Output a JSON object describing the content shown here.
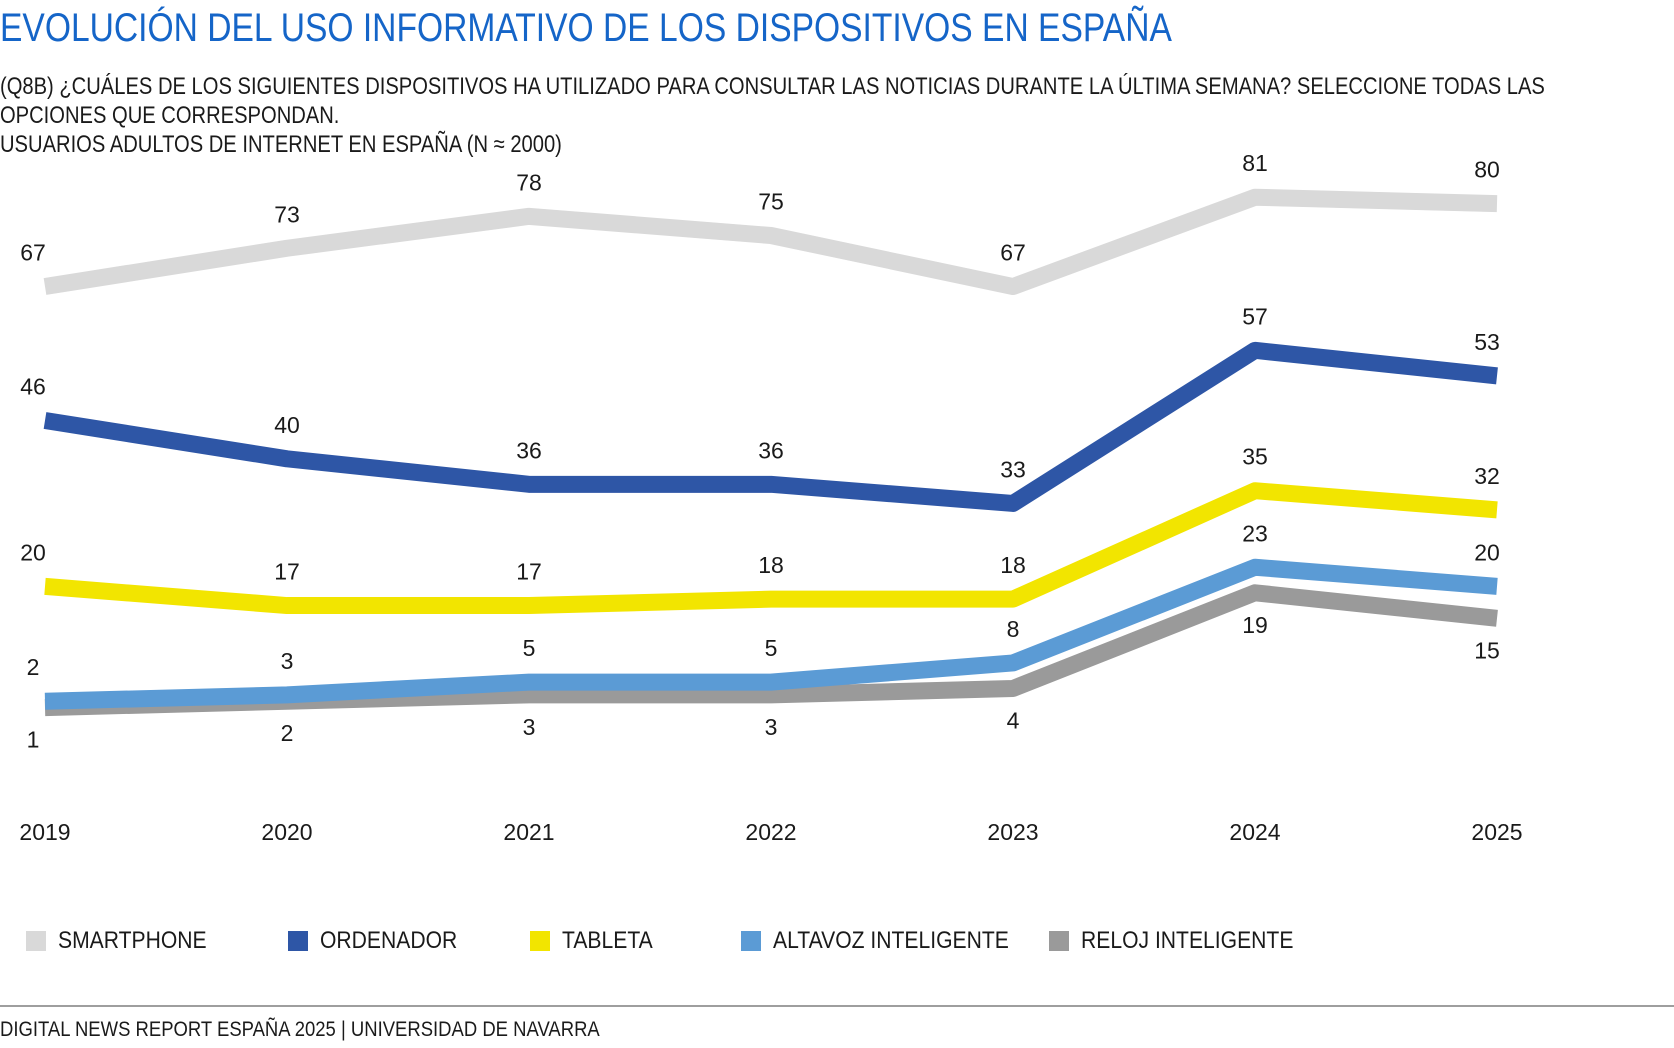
{
  "title": "EVOLUCIÓN DEL USO INFORMATIVO DE LOS DISPOSITIVOS EN ESPAÑA",
  "subtitle": {
    "question": "(Q8B) ¿CUÁLES DE LOS SIGUIENTES DISPOSITIVOS HA UTILIZADO PARA CONSULTAR LAS NOTICIAS  DURANTE LA ÚLTIMA SEMANA? SELECCIONE TODAS LAS OPCIONES QUE CORRESPONDAN.",
    "sample": "USUARIOS ADULTOS DE INTERNET EN ESPAÑA (N ≈ 2000)"
  },
  "legend": [
    {
      "label": "SMARTPHONE",
      "color": "#d9d9d9"
    },
    {
      "label": "ORDENADOR",
      "color": "#2e56a6"
    },
    {
      "label": "TABLETA",
      "color": "#f2e500"
    },
    {
      "label": "ALTAVOZ INTELIGENTE",
      "color": "#5b9bd5"
    },
    {
      "label": "RELOJ INTELIGENTE",
      "color": "#9a9a9a"
    }
  ],
  "chart_data": {
    "type": "line",
    "x": [
      "2019",
      "2020",
      "2021",
      "2022",
      "2023",
      "2024",
      "2025"
    ],
    "ylim": [
      0,
      90
    ],
    "grid": false,
    "legend_position": "bottom",
    "series": [
      {
        "name": "SMARTPHONE",
        "color": "#d9d9d9",
        "values": [
          67,
          73,
          78,
          75,
          67,
          81,
          80
        ]
      },
      {
        "name": "ORDENADOR",
        "color": "#2e56a6",
        "values": [
          46,
          40,
          36,
          36,
          33,
          57,
          53
        ]
      },
      {
        "name": "TABLETA",
        "color": "#f2e500",
        "values": [
          20,
          17,
          17,
          18,
          18,
          35,
          32
        ]
      },
      {
        "name": "ALTAVOZ INTELIGENTE",
        "color": "#5b9bd5",
        "values": [
          2,
          3,
          5,
          5,
          8,
          23,
          20
        ]
      },
      {
        "name": "RELOJ INTELIGENTE",
        "color": "#9a9a9a",
        "values": [
          1,
          2,
          3,
          3,
          4,
          19,
          15
        ]
      }
    ]
  },
  "footer": "DIGITAL NEWS REPORT ESPAÑA 2025 | UNIVERSIDAD DE NAVARRA"
}
